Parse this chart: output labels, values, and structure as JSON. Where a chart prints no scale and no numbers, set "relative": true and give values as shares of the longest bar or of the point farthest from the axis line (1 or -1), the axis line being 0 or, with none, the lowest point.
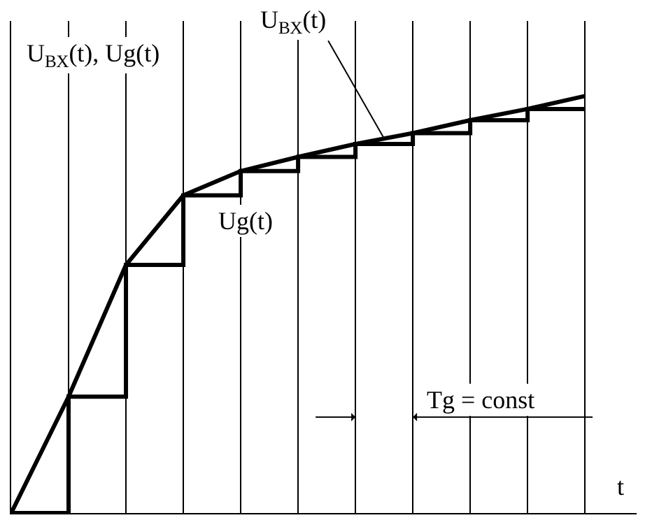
{
  "chart_data": {
    "type": "line",
    "relative": true,
    "ylabel": "U$_{ВХ}$(t), Ug(t)",
    "xlabel": "t",
    "categories": [
      null,
      null,
      null,
      null,
      null,
      null,
      null,
      null,
      null,
      null,
      null
    ],
    "grid": "x",
    "legend": false,
    "series": [
      {
        "name": "U$_{ВХ}$(t)",
        "type": "line",
        "color": "#000000",
        "values": [
          0,
          0.279,
          0.595,
          0.762,
          0.82,
          0.854,
          0.885,
          0.911,
          0.942,
          0.969,
          1
        ]
      },
      {
        "name": "Ug(t)",
        "type": "step",
        "color": "#000000",
        "values": [
          0,
          0.279,
          0.595,
          0.762,
          0.82,
          0.854,
          0.885,
          0.911,
          0.942,
          0.969,
          0.969
        ]
      }
    ],
    "annotations": [
      "Tg = const"
    ]
  }
}
